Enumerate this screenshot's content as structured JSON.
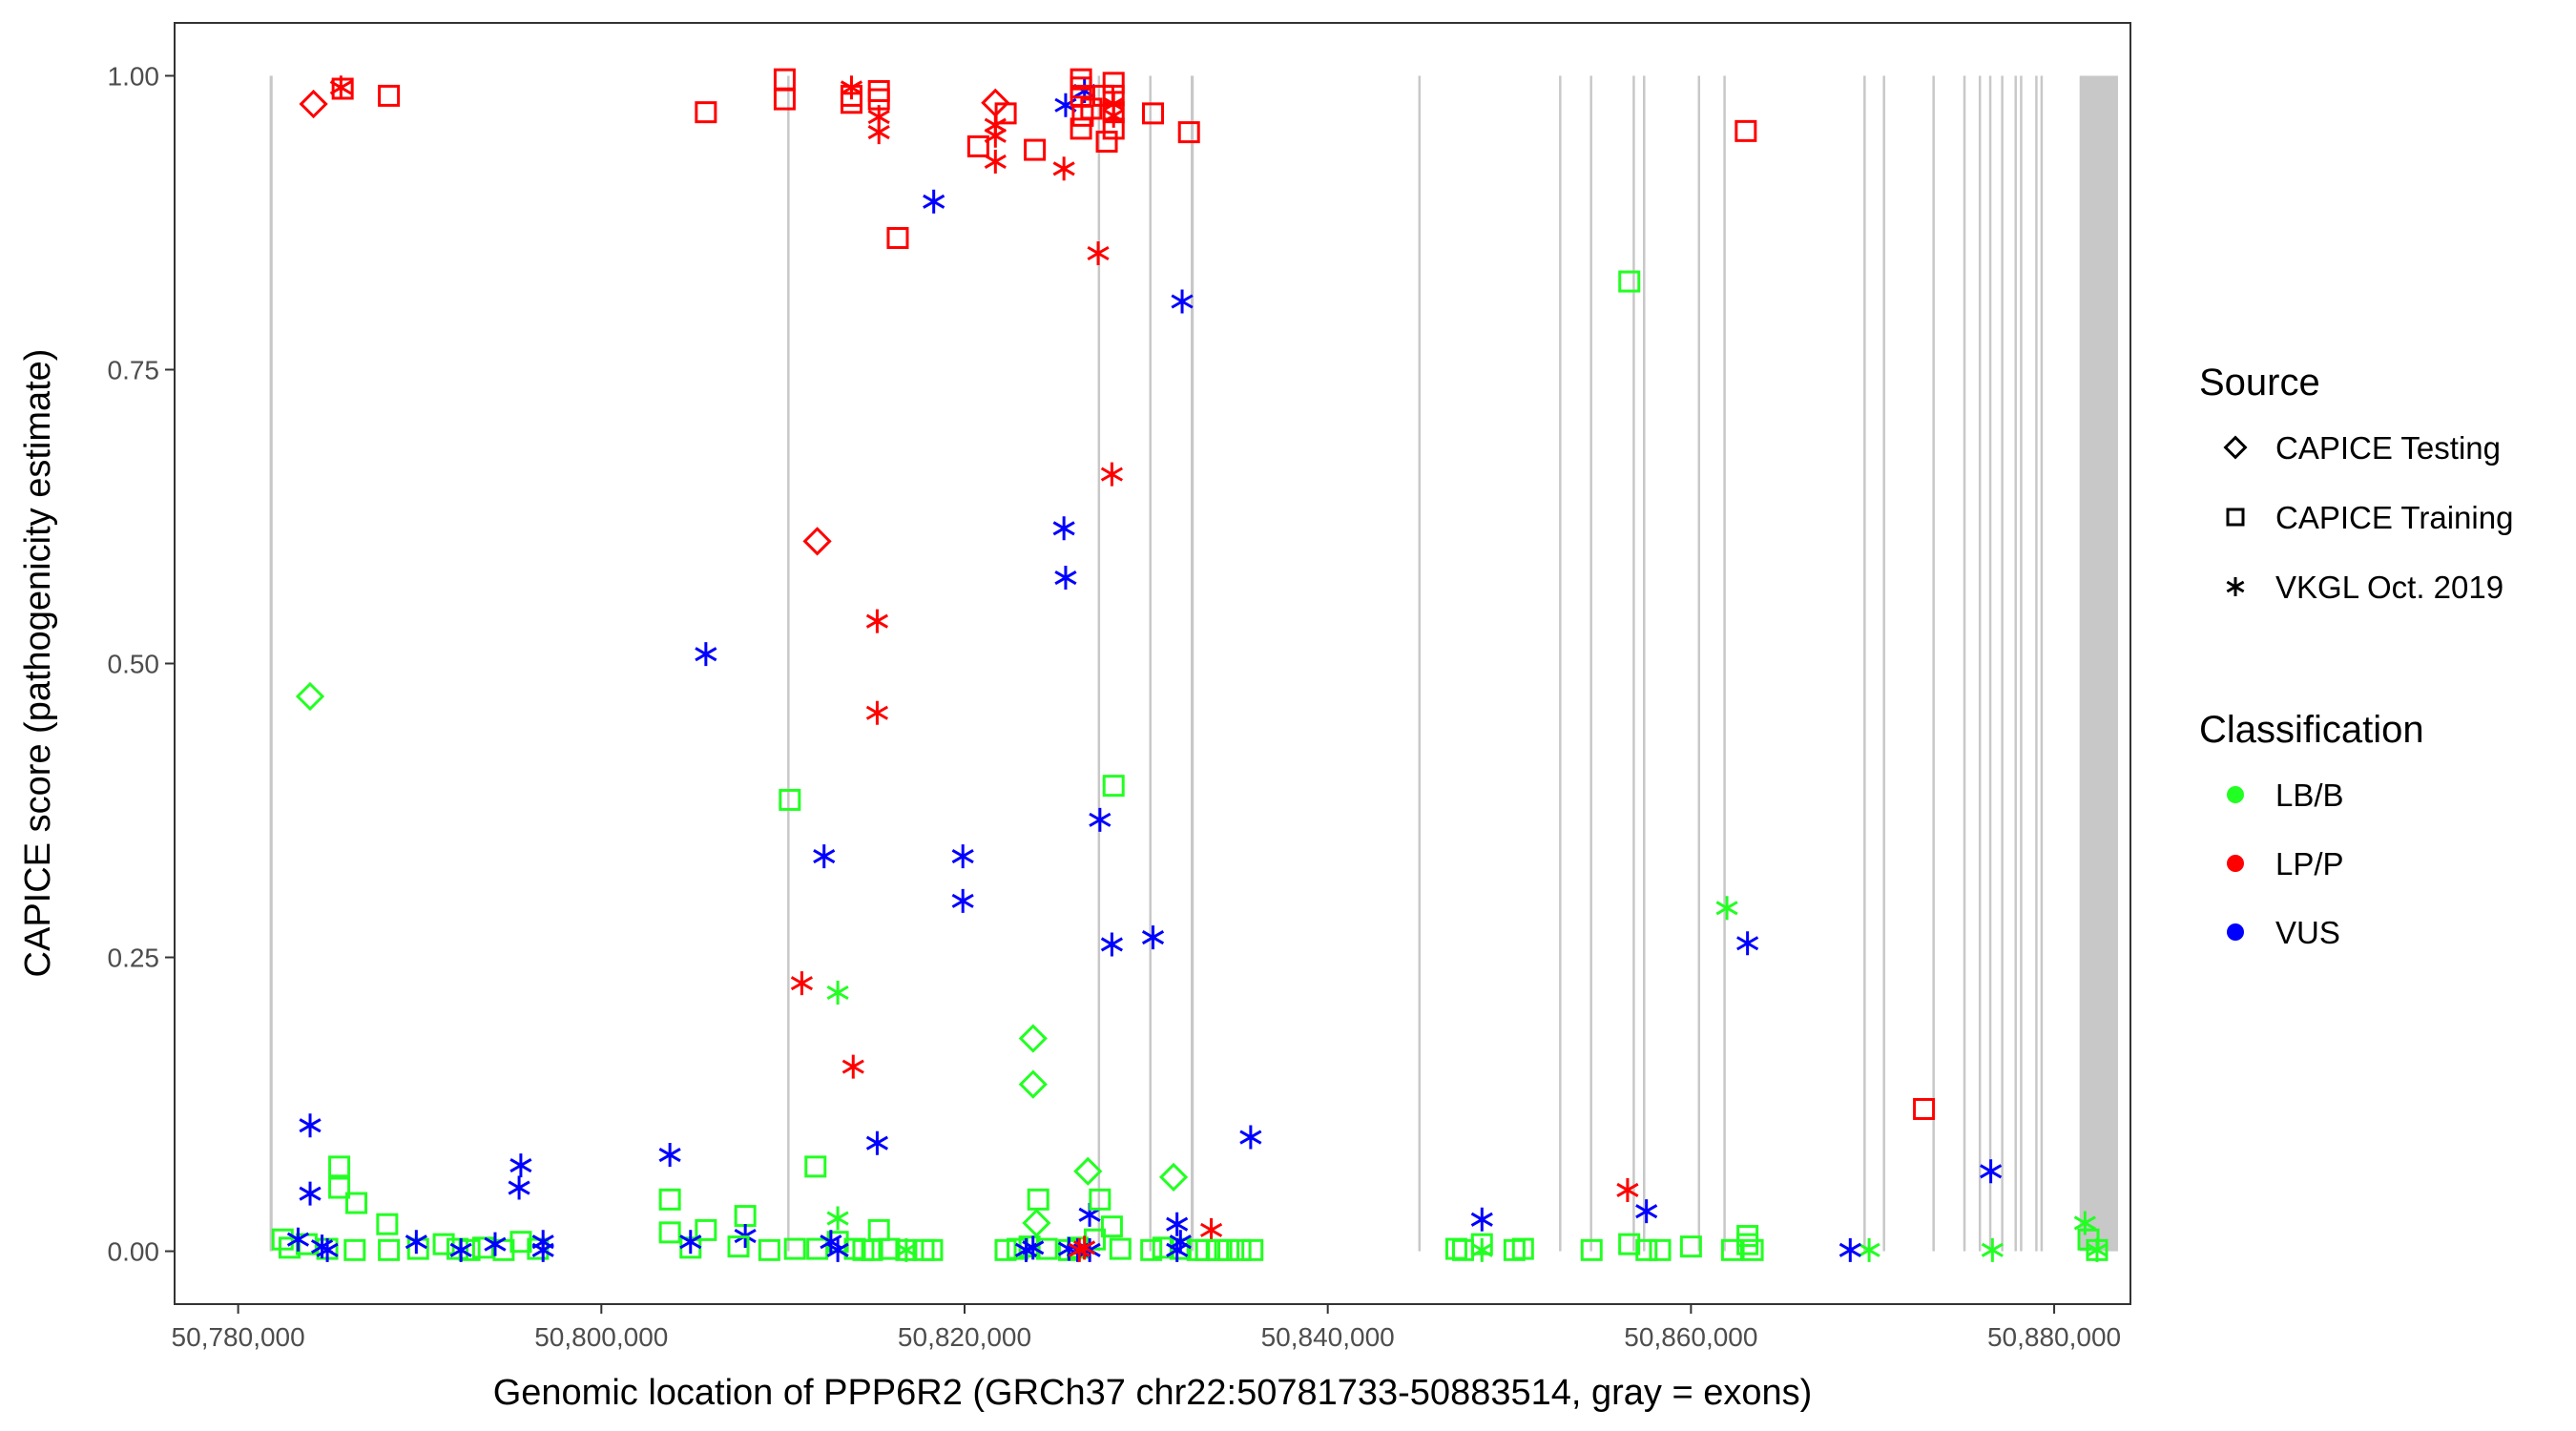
{
  "chart_data": {
    "type": "scatter",
    "xlabel": "Genomic location of PPP6R2 (GRCh37 chr22:50781733-50883514, gray = exons)",
    "ylabel": "CAPICE score (pathogenicity estimate)",
    "xlim": [
      50776500,
      50884200
    ],
    "ylim": [
      -0.045,
      1.045
    ],
    "x_ticks": [
      50780000,
      50800000,
      50820000,
      50840000,
      50860000,
      50880000
    ],
    "x_tick_labels": [
      "50,780,000",
      "50,800,000",
      "50,820,000",
      "50,840,000",
      "50,860,000",
      "50,880,000"
    ],
    "y_ticks": [
      0,
      0.25,
      0.5,
      0.75,
      1.0
    ],
    "y_tick_labels": [
      "0.00",
      "0.25",
      "0.50",
      "0.75",
      "1.00"
    ],
    "grid": false,
    "legend_placement": "right",
    "legend": {
      "source_title": "Source",
      "sources": [
        {
          "label": "CAPICE Testing",
          "shape": "diamond"
        },
        {
          "label": "CAPICE Training",
          "shape": "square"
        },
        {
          "label": "VKGL Oct. 2019",
          "shape": "asterisk"
        }
      ],
      "class_title": "Classification",
      "classes": [
        {
          "label": "LB/B",
          "color": "#22FF22"
        },
        {
          "label": "LP/P",
          "color": "#FF0000"
        },
        {
          "label": "VUS",
          "color": "#0000FF"
        }
      ]
    },
    "exon_color": "#C8C8C8",
    "exons": [
      [
        50781733,
        50781900
      ],
      [
        50810300,
        50810400
      ],
      [
        50827400,
        50827480
      ],
      [
        50830230,
        50830310
      ],
      [
        50832450,
        50832620
      ],
      [
        50845050,
        50845130
      ],
      [
        50852800,
        50852870
      ],
      [
        50854500,
        50854560
      ],
      [
        50856850,
        50856920
      ],
      [
        50857420,
        50857480
      ],
      [
        50860440,
        50860500
      ],
      [
        50861850,
        50861920
      ],
      [
        50869560,
        50869680
      ],
      [
        50870630,
        50870690
      ],
      [
        50873360,
        50873430
      ],
      [
        50875060,
        50875120
      ],
      [
        50875910,
        50875970
      ],
      [
        50876480,
        50876540
      ],
      [
        50877140,
        50877200
      ],
      [
        50877880,
        50877960
      ],
      [
        50878180,
        50878240
      ],
      [
        50879020,
        50879080
      ],
      [
        50879310,
        50879370
      ],
      [
        50881400,
        50883514
      ]
    ],
    "point_fields": [
      "position",
      "score",
      "source_index",
      "class_index"
    ],
    "points": [
      [
        50784150,
        0.976,
        0,
        1
      ],
      [
        50785755,
        0.989,
        1,
        1
      ],
      [
        50785660,
        0.99,
        2,
        1
      ],
      [
        50788300,
        0.983,
        1,
        1
      ],
      [
        50805755,
        0.969,
        1,
        1
      ],
      [
        50810094,
        0.997,
        1,
        1
      ],
      [
        50810094,
        0.98,
        1,
        1
      ],
      [
        50813774,
        0.99,
        2,
        1
      ],
      [
        50813774,
        0.983,
        1,
        1
      ],
      [
        50813774,
        0.977,
        1,
        1
      ],
      [
        50815283,
        0.987,
        1,
        1
      ],
      [
        50815283,
        0.98,
        1,
        1
      ],
      [
        50815283,
        0.965,
        2,
        1
      ],
      [
        50815283,
        0.952,
        2,
        1
      ],
      [
        50816321,
        0.862,
        1,
        1
      ],
      [
        50818302,
        0.893,
        2,
        2
      ],
      [
        50820755,
        0.94,
        1,
        1
      ],
      [
        50821698,
        0.977,
        0,
        1
      ],
      [
        50822264,
        0.968,
        1,
        1
      ],
      [
        50821698,
        0.958,
        2,
        1
      ],
      [
        50821698,
        0.949,
        2,
        1
      ],
      [
        50821698,
        0.927,
        2,
        1
      ],
      [
        50823868,
        0.937,
        1,
        1
      ],
      [
        50825472,
        0.921,
        2,
        1
      ],
      [
        50825566,
        0.975,
        2,
        2
      ],
      [
        50826604,
        0.987,
        2,
        2
      ],
      [
        50826415,
        0.997,
        1,
        1
      ],
      [
        50826415,
        0.99,
        1,
        1
      ],
      [
        50826415,
        0.983,
        1,
        1
      ],
      [
        50826510,
        0.966,
        1,
        1
      ],
      [
        50826415,
        0.955,
        1,
        1
      ],
      [
        50826981,
        0.972,
        1,
        1
      ],
      [
        50827640,
        0.983,
        1,
        1
      ],
      [
        50827830,
        0.944,
        1,
        1
      ],
      [
        50828208,
        0.994,
        1,
        1
      ],
      [
        50828208,
        0.983,
        1,
        1
      ],
      [
        50828208,
        0.969,
        1,
        1
      ],
      [
        50828208,
        0.955,
        1,
        1
      ],
      [
        50828208,
        0.976,
        2,
        1
      ],
      [
        50828208,
        0.966,
        2,
        1
      ],
      [
        50827358,
        0.849,
        2,
        1
      ],
      [
        50830377,
        0.968,
        1,
        1
      ],
      [
        50832358,
        0.952,
        1,
        1
      ],
      [
        50831981,
        0.808,
        2,
        2
      ],
      [
        50863019,
        0.953,
        1,
        1
      ],
      [
        50856604,
        0.825,
        1,
        0
      ],
      [
        50828113,
        0.661,
        2,
        1
      ],
      [
        50811887,
        0.604,
        0,
        1
      ],
      [
        50825472,
        0.615,
        2,
        2
      ],
      [
        50825566,
        0.573,
        2,
        2
      ],
      [
        50815189,
        0.536,
        2,
        1
      ],
      [
        50815189,
        0.458,
        2,
        1
      ],
      [
        50805755,
        0.508,
        2,
        2
      ],
      [
        50783962,
        0.472,
        0,
        0
      ],
      [
        50810377,
        0.384,
        1,
        0
      ],
      [
        50828208,
        0.396,
        1,
        0
      ],
      [
        50827453,
        0.367,
        2,
        2
      ],
      [
        50812264,
        0.336,
        2,
        2
      ],
      [
        50819906,
        0.336,
        2,
        2
      ],
      [
        50819906,
        0.298,
        2,
        2
      ],
      [
        50828113,
        0.261,
        2,
        2
      ],
      [
        50830377,
        0.267,
        2,
        2
      ],
      [
        50861981,
        0.292,
        2,
        0
      ],
      [
        50863113,
        0.262,
        2,
        2
      ],
      [
        50811038,
        0.228,
        2,
        1
      ],
      [
        50813019,
        0.22,
        2,
        0
      ],
      [
        50823774,
        0.181,
        0,
        0
      ],
      [
        50823774,
        0.142,
        0,
        0
      ],
      [
        50813868,
        0.157,
        2,
        1
      ],
      [
        50872830,
        0.121,
        1,
        1
      ],
      [
        50783962,
        0.107,
        2,
        2
      ],
      [
        50783962,
        0.049,
        2,
        2
      ],
      [
        50785566,
        0.072,
        1,
        0
      ],
      [
        50785566,
        0.054,
        1,
        0
      ],
      [
        50786509,
        0.041,
        1,
        0
      ],
      [
        50788208,
        0.023,
        1,
        0
      ],
      [
        50795566,
        0.073,
        2,
        2
      ],
      [
        50795470,
        0.054,
        2,
        2
      ],
      [
        50803774,
        0.082,
        2,
        2
      ],
      [
        50803774,
        0.044,
        1,
        0
      ],
      [
        50803774,
        0.016,
        1,
        0
      ],
      [
        50805755,
        0.018,
        1,
        0
      ],
      [
        50807925,
        0.03,
        1,
        0
      ],
      [
        50807925,
        0.013,
        2,
        2
      ],
      [
        50811792,
        0.072,
        1,
        0
      ],
      [
        50813019,
        0.028,
        2,
        0
      ],
      [
        50815189,
        0.092,
        2,
        2
      ],
      [
        50815283,
        0.018,
        1,
        0
      ],
      [
        50835755,
        0.097,
        2,
        2
      ],
      [
        50826792,
        0.068,
        0,
        0
      ],
      [
        50831509,
        0.063,
        0,
        0
      ],
      [
        50824057,
        0.044,
        1,
        0
      ],
      [
        50823963,
        0.024,
        0,
        0
      ],
      [
        50826887,
        0.031,
        2,
        2
      ],
      [
        50827453,
        0.044,
        1,
        0
      ],
      [
        50828113,
        0.021,
        1,
        0
      ],
      [
        50831698,
        0.023,
        2,
        2
      ],
      [
        50833585,
        0.018,
        2,
        1
      ],
      [
        50856509,
        0.052,
        2,
        1
      ],
      [
        50857547,
        0.034,
        2,
        2
      ],
      [
        50848491,
        0.027,
        2,
        2
      ],
      [
        50876509,
        0.068,
        2,
        2
      ],
      [
        50881698,
        0.024,
        2,
        0
      ],
      [
        50863113,
        0.013,
        1,
        0
      ],
      [
        50863113,
        0.006,
        1,
        0
      ],
      [
        50782450,
        0.01,
        1,
        0
      ],
      [
        50782830,
        0.003,
        1,
        0
      ],
      [
        50783770,
        0.006,
        1,
        0
      ],
      [
        50784910,
        0.002,
        1,
        0
      ],
      [
        50786420,
        0.001,
        1,
        0
      ],
      [
        50788300,
        0.001,
        1,
        0
      ],
      [
        50789910,
        0.002,
        1,
        0
      ],
      [
        50791320,
        0.006,
        1,
        0
      ],
      [
        50792080,
        0.002,
        1,
        0
      ],
      [
        50792740,
        0.001,
        1,
        0
      ],
      [
        50793490,
        0.003,
        1,
        0
      ],
      [
        50794620,
        0.001,
        1,
        0
      ],
      [
        50795570,
        0.008,
        1,
        0
      ],
      [
        50796510,
        0.002,
        1,
        0
      ],
      [
        50804910,
        0.003,
        1,
        0
      ],
      [
        50807550,
        0.004,
        1,
        0
      ],
      [
        50809250,
        0.001,
        1,
        0
      ],
      [
        50810660,
        0.002,
        1,
        0
      ],
      [
        50811890,
        0.002,
        1,
        0
      ],
      [
        50813020,
        0.008,
        1,
        0
      ],
      [
        50813960,
        0.002,
        1,
        0
      ],
      [
        50814430,
        0.001,
        1,
        0
      ],
      [
        50814910,
        0.001,
        1,
        0
      ],
      [
        50815850,
        0.002,
        1,
        0
      ],
      [
        50816790,
        0.001,
        1,
        0
      ],
      [
        50817740,
        0.001,
        1,
        0
      ],
      [
        50818210,
        0.001,
        1,
        0
      ],
      [
        50822260,
        0.001,
        1,
        0
      ],
      [
        50822920,
        0.002,
        1,
        0
      ],
      [
        50823580,
        0.004,
        1,
        0
      ],
      [
        50824530,
        0.002,
        1,
        0
      ],
      [
        50825750,
        0.001,
        1,
        0
      ],
      [
        50826230,
        0.003,
        1,
        0
      ],
      [
        50827170,
        0.01,
        1,
        0
      ],
      [
        50828580,
        0.002,
        1,
        0
      ],
      [
        50830280,
        0.001,
        1,
        0
      ],
      [
        50830940,
        0.003,
        1,
        0
      ],
      [
        50831890,
        0.002,
        1,
        0
      ],
      [
        50832830,
        0.001,
        1,
        0
      ],
      [
        50833300,
        0.001,
        1,
        0
      ],
      [
        50833960,
        0.001,
        1,
        0
      ],
      [
        50834530,
        0.001,
        1,
        0
      ],
      [
        50835190,
        0.001,
        1,
        0
      ],
      [
        50835850,
        0.001,
        1,
        0
      ],
      [
        50847080,
        0.002,
        1,
        0
      ],
      [
        50847450,
        0.001,
        1,
        0
      ],
      [
        50848490,
        0.006,
        1,
        0
      ],
      [
        50850280,
        0.001,
        1,
        0
      ],
      [
        50850750,
        0.002,
        1,
        0
      ],
      [
        50854530,
        0.001,
        1,
        0
      ],
      [
        50856600,
        0.006,
        1,
        0
      ],
      [
        50857550,
        0.001,
        1,
        0
      ],
      [
        50858300,
        0.001,
        1,
        0
      ],
      [
        50860000,
        0.004,
        1,
        0
      ],
      [
        50862260,
        0.001,
        1,
        0
      ],
      [
        50863400,
        0.001,
        1,
        0
      ],
      [
        50881890,
        0.01,
        1,
        0
      ],
      [
        50882360,
        0.001,
        1,
        0
      ],
      [
        50816790,
        0.001,
        2,
        0
      ],
      [
        50869810,
        0.001,
        2,
        0
      ],
      [
        50876600,
        0.001,
        2,
        0
      ],
      [
        50882360,
        0.001,
        2,
        0
      ],
      [
        50848490,
        0.001,
        2,
        0
      ],
      [
        50783300,
        0.01,
        2,
        2
      ],
      [
        50784620,
        0.004,
        2,
        2
      ],
      [
        50784910,
        0.001,
        2,
        2
      ],
      [
        50789810,
        0.008,
        2,
        2
      ],
      [
        50792270,
        0.001,
        2,
        2
      ],
      [
        50794150,
        0.006,
        2,
        2
      ],
      [
        50796790,
        0.008,
        2,
        2
      ],
      [
        50796790,
        0.001,
        2,
        2
      ],
      [
        50804910,
        0.008,
        2,
        2
      ],
      [
        50812640,
        0.008,
        2,
        2
      ],
      [
        50813020,
        0.001,
        2,
        2
      ],
      [
        50823390,
        0.001,
        2,
        2
      ],
      [
        50823770,
        0.003,
        2,
        2
      ],
      [
        50825750,
        0.002,
        2,
        2
      ],
      [
        50826230,
        0.001,
        2,
        2
      ],
      [
        50826890,
        0.001,
        2,
        2
      ],
      [
        50831700,
        0.001,
        2,
        2
      ],
      [
        50831890,
        0.008,
        2,
        2
      ],
      [
        50868770,
        0.001,
        2,
        2
      ],
      [
        50826320,
        0.001,
        2,
        1
      ],
      [
        50826600,
        0.003,
        2,
        1
      ]
    ]
  }
}
